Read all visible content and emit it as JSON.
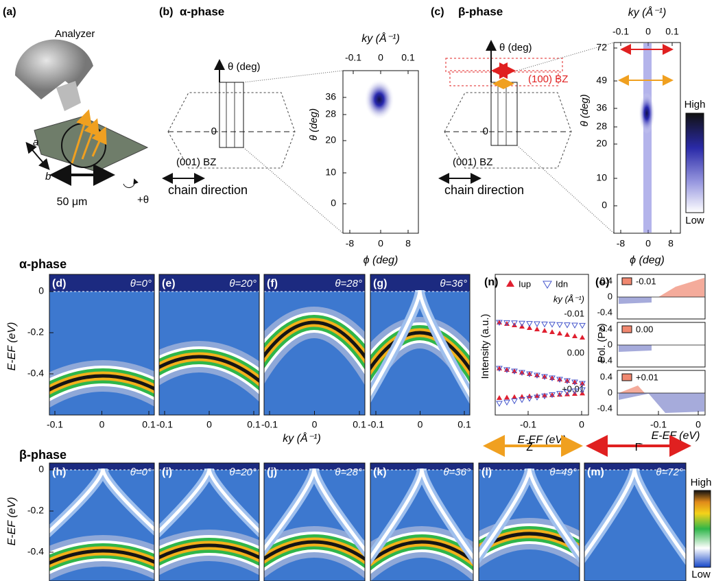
{
  "panel_a": {
    "label": "(a)",
    "analyzer": "Analyzer",
    "axis_a": "a",
    "axis_b": "b",
    "scale": "50 μm",
    "rotation": "+θ"
  },
  "panel_b": {
    "label": "(b)",
    "phase": "α-phase",
    "theta_axis": "θ (deg)",
    "zero": "0",
    "bz": "(001) BZ",
    "chain": "chain direction",
    "map": {
      "top_label": "ky (Å⁻¹)",
      "top_ticks": [
        "-0.1",
        "0",
        "0.1"
      ],
      "y_label": "θ (deg)",
      "y_ticks": [
        "36",
        "28",
        "20",
        "10",
        "0"
      ],
      "x_ticks": [
        "-8",
        "0",
        "8"
      ],
      "x_label": "ϕ (deg)"
    }
  },
  "panel_c": {
    "label": "(c)",
    "phase": "β-phase",
    "theta_axis": "θ (deg)",
    "zero": "0",
    "bz_red": "(100) BZ",
    "bz": "(001) BZ",
    "chain": "chain direction",
    "map": {
      "top_label": "ky (Å⁻¹)",
      "top_ticks": [
        "-0.1",
        "0",
        "0.1"
      ],
      "y_label": "θ (deg)",
      "y_ticks": [
        "72",
        "49",
        "36",
        "28",
        "20",
        "10",
        "0"
      ],
      "x_ticks": [
        "-8",
        "0",
        "8"
      ],
      "x_label": "ϕ (deg)"
    },
    "colorbar": {
      "high": "High",
      "low": "Low"
    }
  },
  "alpha_row": {
    "title": "α-phase",
    "y_label": "E-EF (eV)",
    "y_ticks": [
      "0",
      "-0.2",
      "-0.4"
    ],
    "x_label": "ky (Å⁻¹)",
    "panels": [
      {
        "label": "(d)",
        "theta": "θ=0°",
        "x_ticks": [
          "-0.1",
          "0",
          "0.1"
        ]
      },
      {
        "label": "(e)",
        "theta": "θ=20°",
        "x_ticks": [
          "-0.1",
          "0",
          "0.1"
        ]
      },
      {
        "label": "(f)",
        "theta": "θ=28°",
        "x_ticks": [
          "-0.1",
          "0",
          "0.1"
        ]
      },
      {
        "label": "(g)",
        "theta": "θ=36°",
        "x_ticks": [
          "-0.1",
          "0",
          "0.1"
        ]
      }
    ]
  },
  "panel_n": {
    "label": "(n)",
    "legend_up": "Iup",
    "legend_dn": "Idn",
    "ky_label": "ky (Å⁻¹)",
    "rows": [
      "-0.01",
      "0.00",
      "+0.01"
    ],
    "y_label": "Intensity (a.u.)",
    "x_ticks": [
      "-0.1",
      "0"
    ],
    "x_label": "E-EF (eV)",
    "point": "Z̄"
  },
  "panel_o": {
    "label": "(o)",
    "rows": [
      "-0.01",
      "0.00",
      "+0.01"
    ],
    "y_ticks": [
      "0.4",
      "0",
      "-0.4"
    ],
    "y_label": "Pol. (Pz)",
    "x_ticks": [
      "-0.1",
      "0"
    ],
    "x_label": "E-EF (eV)",
    "point": "Γ̄"
  },
  "beta_row": {
    "title": "β-phase",
    "y_label": "E-EF (eV)",
    "y_ticks": [
      "0",
      "-0.2",
      "-0.4"
    ],
    "panels": [
      {
        "label": "(h)",
        "theta": "θ=0°"
      },
      {
        "label": "(i)",
        "theta": "θ=20°"
      },
      {
        "label": "(j)",
        "theta": "θ=28°"
      },
      {
        "label": "(k)",
        "theta": "θ=36°"
      },
      {
        "label": "(l)",
        "theta": "θ=49°"
      },
      {
        "label": "(m)",
        "theta": "θ=72°"
      }
    ],
    "colorbar": {
      "high": "High",
      "low": "Low"
    }
  }
}
